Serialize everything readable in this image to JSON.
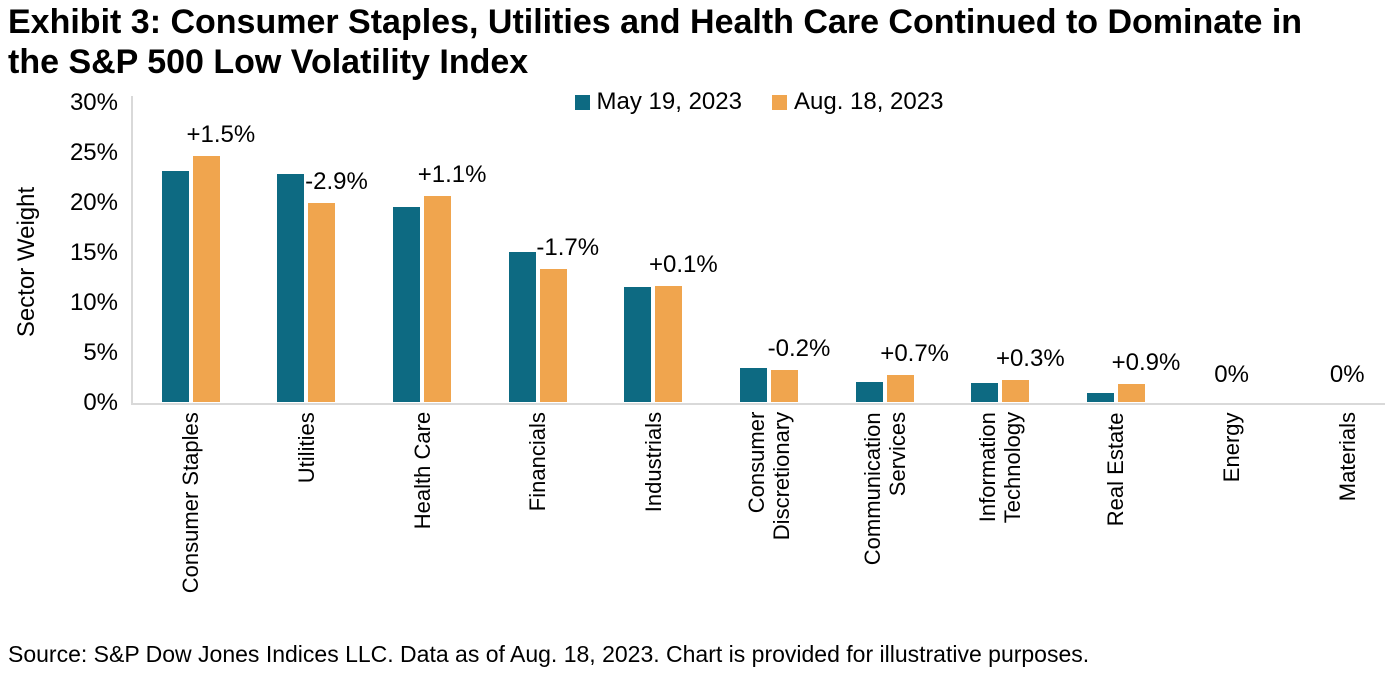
{
  "title_lines": [
    "Exhibit 3: Consumer Staples, Utilities and Health Care Continued to Dominate in",
    "the S&P 500 Low Volatility Index"
  ],
  "legend": {
    "items": [
      {
        "label": "May 19, 2023",
        "color": "#0D6A82"
      },
      {
        "label": "Aug. 18, 2023",
        "color": "#F0A54E"
      }
    ]
  },
  "source_note": "Source: S&P Dow Jones Indices LLC. Data as of Aug. 18, 2023. Chart is provided for illustrative purposes.",
  "colors": {
    "may_series": "#0D6A82",
    "aug_series": "#F0A54E",
    "axis_line": "#D9D9D9",
    "text": "#000000"
  },
  "chart_data": {
    "type": "bar",
    "title": "Exhibit 3: Consumer Staples, Utilities and Health Care Continued to Dominate in the S&P 500 Low Volatility Index",
    "xlabel": "",
    "ylabel": "Sector Weight",
    "ylim": [
      0,
      30
    ],
    "grid": false,
    "legend_position": "top-center",
    "ytick_labels": [
      "0%",
      "5%",
      "10%",
      "15%",
      "20%",
      "25%",
      "30%"
    ],
    "categories": [
      "Consumer Staples",
      "Utilities",
      "Health Care",
      "Financials",
      "Industrials",
      "Consumer\nDiscretionary",
      "Communication\nServices",
      "Information\nTechnology",
      "Real Estate",
      "Energy",
      "Materials"
    ],
    "series": [
      {
        "name": "May 19, 2023",
        "color": "#0D6A82",
        "values": [
          23.1,
          22.8,
          19.5,
          15.0,
          11.5,
          3.4,
          2.0,
          1.9,
          0.9,
          0,
          0
        ]
      },
      {
        "name": "Aug. 18, 2023",
        "color": "#F0A54E",
        "values": [
          24.6,
          19.9,
          20.6,
          13.3,
          11.6,
          3.2,
          2.7,
          2.2,
          1.8,
          0,
          0
        ]
      }
    ],
    "annotations": [
      "+1.5%",
      "-2.9%",
      "+1.1%",
      "-1.7%",
      "+0.1%",
      "-0.2%",
      "+0.7%",
      "+0.3%",
      "+0.9%",
      "0%",
      "0%"
    ]
  }
}
